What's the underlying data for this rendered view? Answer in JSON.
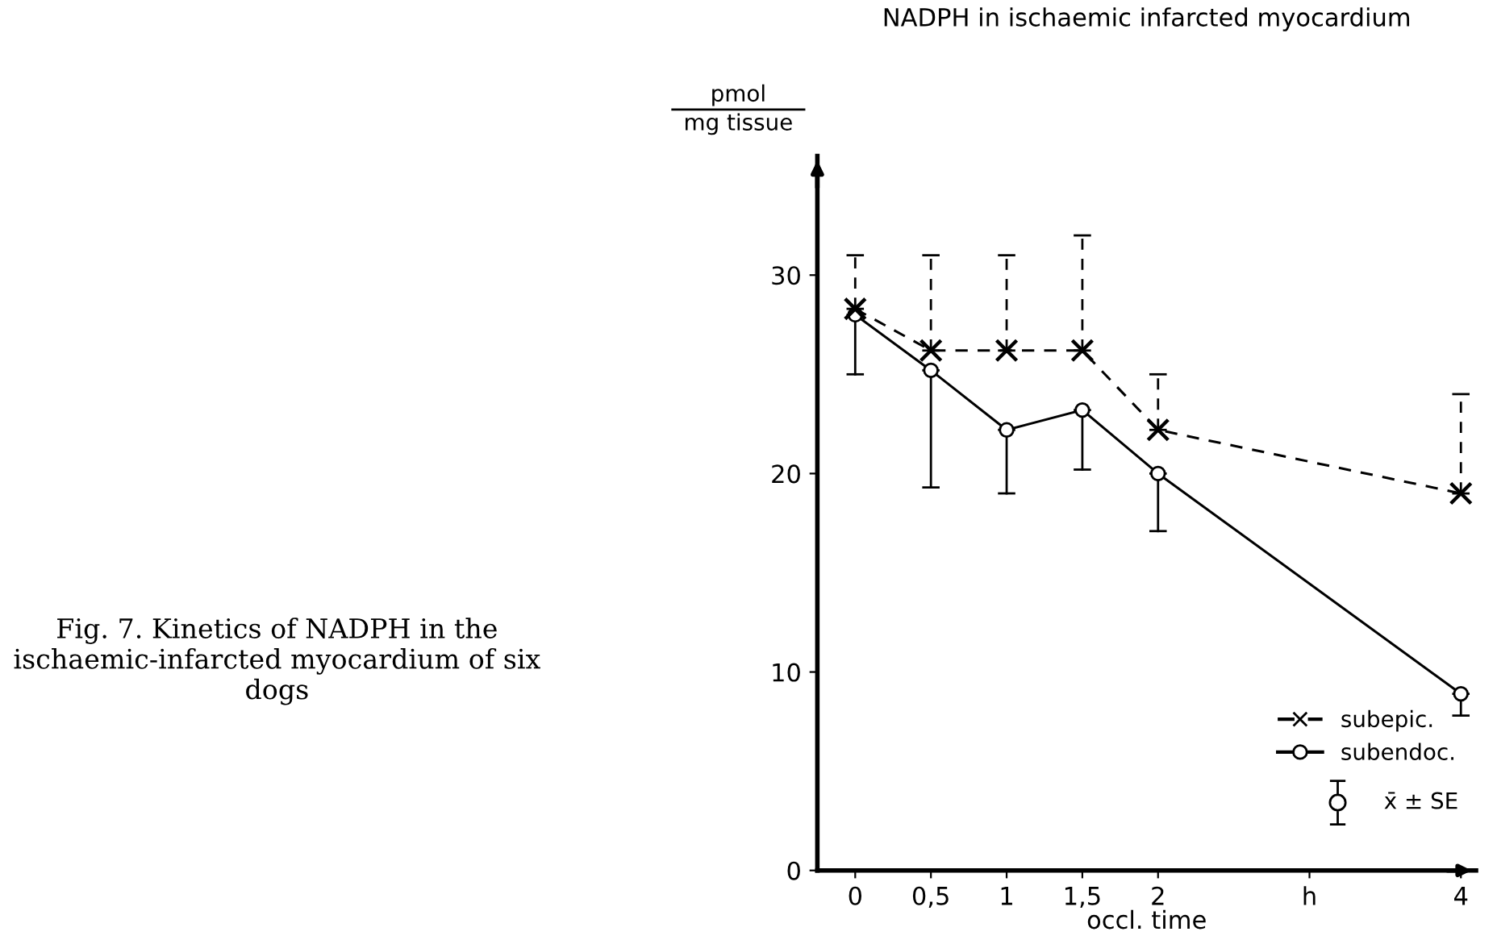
{
  "chart_data": {
    "type": "line",
    "title": "NADPH in ischaemic infarcted myocardium",
    "xlabel": "occl. time",
    "ylabel": "pmol\nmg tissue",
    "x": [
      0,
      0.5,
      1,
      1.5,
      2,
      4
    ],
    "xlim": [
      -0.25,
      4.1
    ],
    "xticks": [
      0,
      {
        "value": 0.5,
        "label": "0,5"
      },
      1,
      {
        "value": 1.5,
        "label": "1,5"
      },
      2,
      {
        "value": 3,
        "label": "h"
      },
      4
    ],
    "series": [
      {
        "name": "subepic.",
        "color": "#000000",
        "line_style": "dashed",
        "marker": "cross",
        "values": [
          28.3,
          26.2,
          26.2,
          26.2,
          22.2,
          19
        ],
        "errors": [
          [
            28.3,
            31
          ],
          [
            26.2,
            31
          ],
          [
            26.2,
            31
          ],
          [
            26.2,
            32
          ],
          [
            22.2,
            25
          ],
          [
            19,
            24
          ]
        ]
      },
      {
        "name": "subendoc.",
        "color": "#000000",
        "line_style": "solid",
        "marker": "circle",
        "values": [
          28,
          25.2,
          22.2,
          23.2,
          20,
          8.9
        ],
        "errors": [
          [
            25,
            28
          ],
          [
            19.3,
            25.2
          ],
          [
            19,
            22.2
          ],
          [
            20.2,
            23.2
          ],
          [
            17.1,
            20
          ],
          [
            7.8,
            8.9
          ]
        ]
      }
    ],
    "ylim": [
      0,
      36
    ],
    "yticks": [
      0,
      10,
      20,
      30
    ],
    "grid": false,
    "legend": "bottom right",
    "annotations": [
      "x̄ ± SE",
      "Fig. 7. Kinetics of NADPH in the ischaemic-infarcted myocardium of six dogs"
    ]
  }
}
